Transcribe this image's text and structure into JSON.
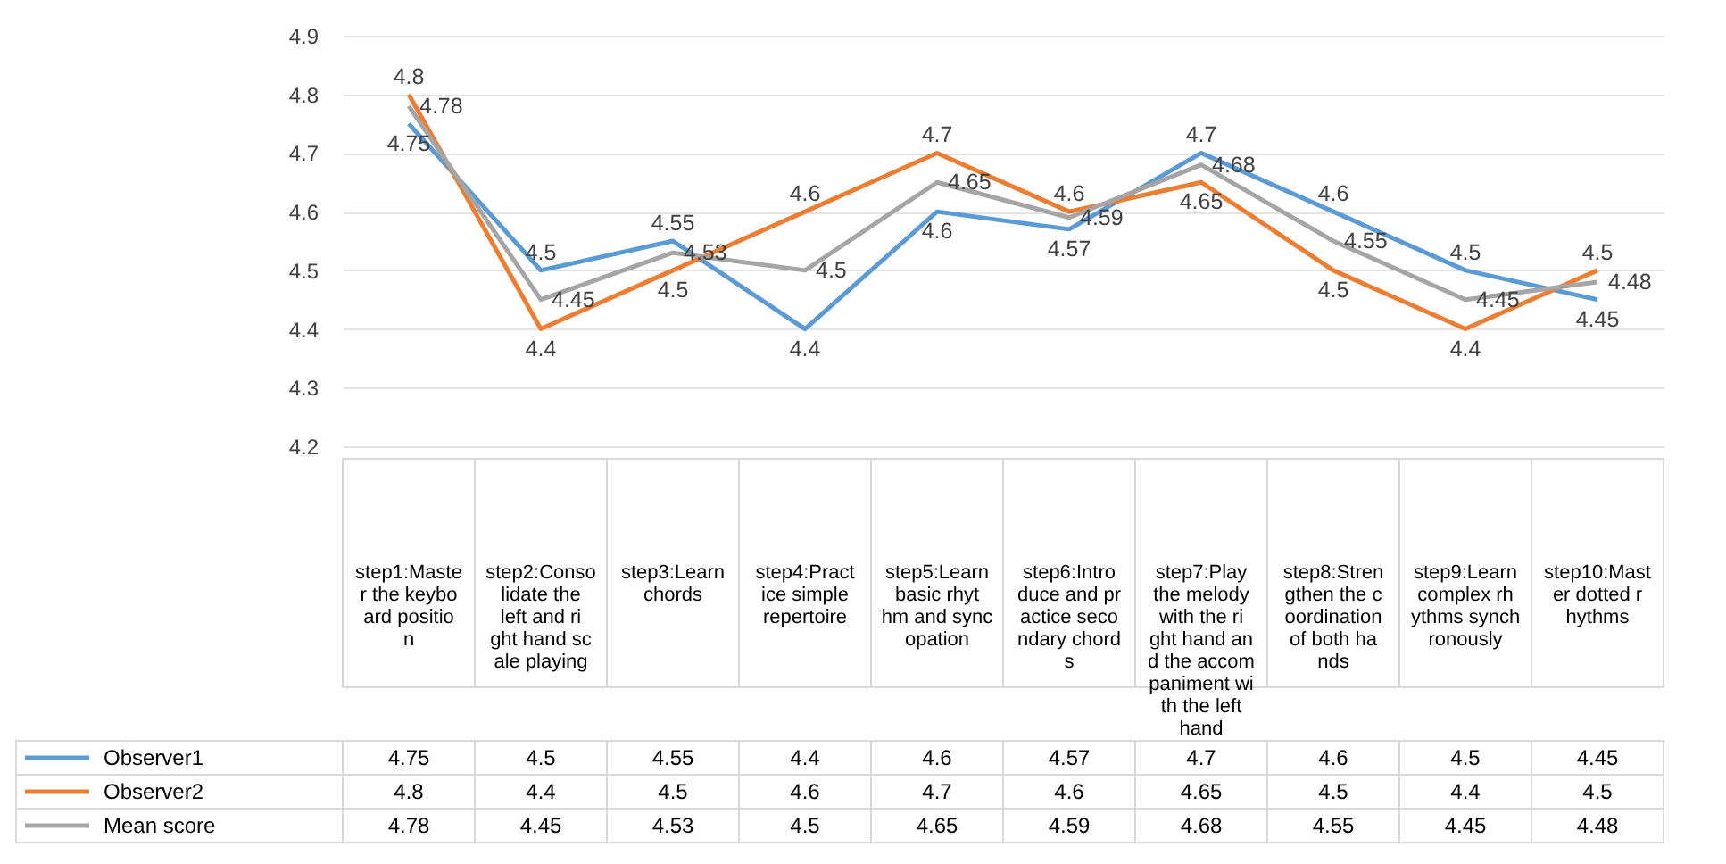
{
  "chart_data": {
    "type": "line",
    "categories": [
      "step1:Master the keyboard position",
      "step2:Consolidate the left and right hand scale playing",
      "step3:Learn chords",
      "step4:Practice simple repertoire",
      "step5:Learn basic rhythm and syncopation",
      "step6:Introduce and practice secondary chords",
      "step7:Play the melody with the right hand and the accompaniment with the left hand",
      "step8:Strengthen the coordination of both hands",
      "step9:Learn complex rhythms synchronously",
      "step10:Master dotted rhythms"
    ],
    "series": [
      {
        "name": "Observer1",
        "color": "#5b9bd5",
        "values": [
          4.75,
          4.5,
          4.55,
          4.4,
          4.6,
          4.57,
          4.7,
          4.6,
          4.5,
          4.45
        ],
        "value_labels": [
          "4.75",
          "4.5",
          "4.55",
          "4.4",
          "4.6",
          "4.57",
          "4.7",
          "4.6",
          "4.5",
          "4.45"
        ]
      },
      {
        "name": "Observer2",
        "color": "#ed7d31",
        "values": [
          4.8,
          4.4,
          4.5,
          4.6,
          4.7,
          4.6,
          4.65,
          4.5,
          4.4,
          4.5
        ],
        "value_labels": [
          "4.8",
          "4.4",
          "4.5",
          "4.6",
          "4.7",
          "4.6",
          "4.65",
          "4.5",
          "4.4",
          "4.5"
        ]
      },
      {
        "name": "Mean score",
        "color": "#a5a5a5",
        "values": [
          4.78,
          4.45,
          4.53,
          4.5,
          4.65,
          4.59,
          4.68,
          4.55,
          4.45,
          4.48
        ],
        "value_labels": [
          "4.78",
          "4.45",
          "4.53",
          "4.5",
          "4.65",
          "4.59",
          "4.68",
          "4.55",
          "4.45",
          "4.48"
        ]
      }
    ],
    "ylim": [
      4.2,
      4.9
    ],
    "yticks": [
      4.2,
      4.3,
      4.4,
      4.5,
      4.6,
      4.7,
      4.8,
      4.9
    ],
    "grid": "y",
    "data_labels": true,
    "legend": "bottom left",
    "marker": "none",
    "line_style": "solid"
  }
}
